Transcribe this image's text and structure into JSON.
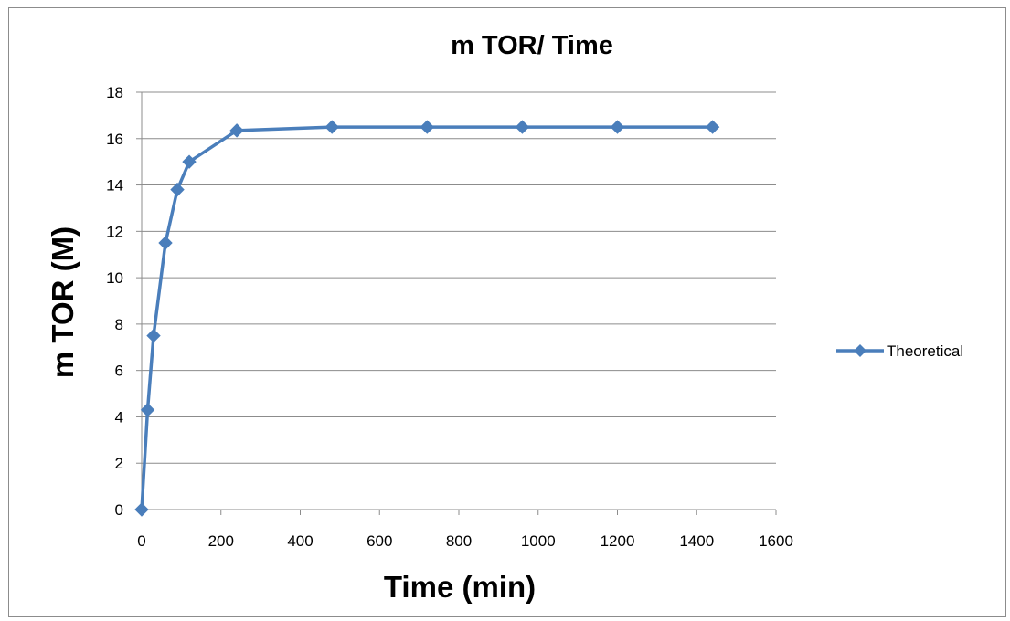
{
  "chart_data": {
    "type": "line",
    "title": "m TOR/ Time",
    "xlabel": "Time (min)",
    "ylabel": "m TOR (M)",
    "xlim": [
      0,
      1600
    ],
    "ylim": [
      0,
      18
    ],
    "x_ticks": [
      0,
      200,
      400,
      600,
      800,
      1000,
      1200,
      1400,
      1600
    ],
    "y_ticks": [
      0,
      2,
      4,
      6,
      8,
      10,
      12,
      14,
      16,
      18
    ],
    "grid": "horizontal",
    "legend_position": "right",
    "series": [
      {
        "name": "Theoretical",
        "color": "#4a7ebb",
        "marker": "diamond",
        "x": [
          0,
          15,
          30,
          60,
          90,
          120,
          240,
          480,
          720,
          960,
          1200,
          1440
        ],
        "y": [
          0,
          4.3,
          7.5,
          11.5,
          13.8,
          15.0,
          16.35,
          16.5,
          16.5,
          16.5,
          16.5,
          16.5
        ]
      }
    ]
  }
}
